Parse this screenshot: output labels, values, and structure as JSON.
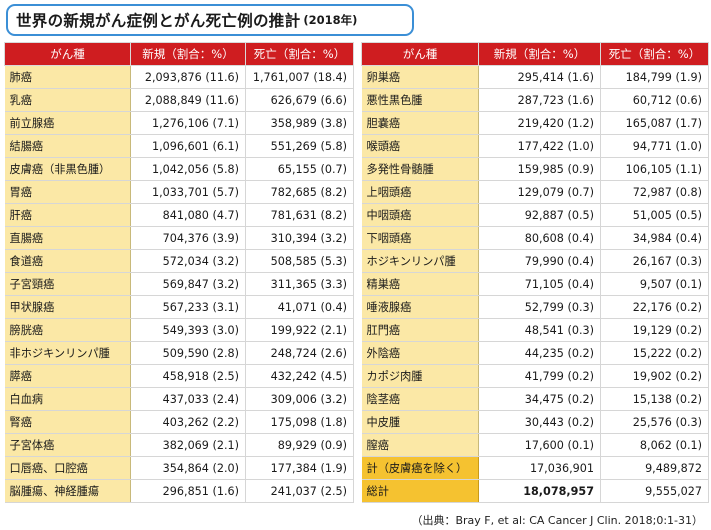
{
  "title": {
    "main": "世界の新規がん症例とがん死亡例の推計",
    "year": "(2018年)"
  },
  "headers": {
    "name": "がん種",
    "new": "新規（割合：%）",
    "death": "死亡（割合：%）"
  },
  "left_rows": [
    {
      "name": "肺癌",
      "new": "2,093,876 (11.6)",
      "death": "1,761,007 (18.4)"
    },
    {
      "name": "乳癌",
      "new": "2,088,849 (11.6)",
      "death": "626,679 (6.6)"
    },
    {
      "name": "前立腺癌",
      "new": "1,276,106 (7.1)",
      "death": "358,989 (3.8)"
    },
    {
      "name": "結腸癌",
      "new": "1,096,601 (6.1)",
      "death": "551,269 (5.8)"
    },
    {
      "name": "皮膚癌（非黒色腫）",
      "new": "1,042,056 (5.8)",
      "death": "65,155 (0.7)"
    },
    {
      "name": "胃癌",
      "new": "1,033,701 (5.7)",
      "death": "782,685 (8.2)"
    },
    {
      "name": "肝癌",
      "new": "841,080 (4.7)",
      "death": "781,631 (8.2)"
    },
    {
      "name": "直腸癌",
      "new": "704,376 (3.9)",
      "death": "310,394 (3.2)"
    },
    {
      "name": "食道癌",
      "new": "572,034 (3.2)",
      "death": "508,585 (5.3)"
    },
    {
      "name": "子宮頸癌",
      "new": "569,847 (3.2)",
      "death": "311,365 (3.3)"
    },
    {
      "name": "甲状腺癌",
      "new": "567,233 (3.1)",
      "death": "41,071 (0.4)"
    },
    {
      "name": "膀胱癌",
      "new": "549,393 (3.0)",
      "death": "199,922 (2.1)"
    },
    {
      "name": "非ホジキンリンパ腫",
      "new": "509,590 (2.8)",
      "death": "248,724 (2.6)"
    },
    {
      "name": "膵癌",
      "new": "458,918 (2.5)",
      "death": "432,242 (4.5)"
    },
    {
      "name": "白血病",
      "new": "437,033 (2.4)",
      "death": "309,006 (3.2)"
    },
    {
      "name": "腎癌",
      "new": "403,262 (2.2)",
      "death": "175,098 (1.8)"
    },
    {
      "name": "子宮体癌",
      "new": "382,069 (2.1)",
      "death": "89,929 (0.9)"
    },
    {
      "name": "口唇癌、口腔癌",
      "new": "354,864 (2.0)",
      "death": "177,384 (1.9)"
    },
    {
      "name": "脳腫瘍、神経腫瘍",
      "new": "296,851 (1.6)",
      "death": "241,037 (2.5)"
    }
  ],
  "right_rows": [
    {
      "name": "卵巣癌",
      "new": "295,414 (1.6)",
      "death": "184,799 (1.9)"
    },
    {
      "name": "悪性黒色腫",
      "new": "287,723 (1.6)",
      "death": "60,712 (0.6)"
    },
    {
      "name": "胆嚢癌",
      "new": "219,420 (1.2)",
      "death": "165,087 (1.7)"
    },
    {
      "name": "喉頭癌",
      "new": "177,422 (1.0)",
      "death": "94,771 (1.0)"
    },
    {
      "name": "多発性骨髄腫",
      "new": "159,985 (0.9)",
      "death": "106,105 (1.1)"
    },
    {
      "name": "上咽頭癌",
      "new": "129,079 (0.7)",
      "death": "72,987 (0.8)"
    },
    {
      "name": "中咽頭癌",
      "new": "92,887 (0.5)",
      "death": "51,005 (0.5)"
    },
    {
      "name": "下咽頭癌",
      "new": "80,608 (0.4)",
      "death": "34,984 (0.4)"
    },
    {
      "name": "ホジキンリンパ腫",
      "new": "79,990 (0.4)",
      "death": "26,167 (0.3)"
    },
    {
      "name": "精巣癌",
      "new": "71,105 (0.4)",
      "death": "9,507 (0.1)"
    },
    {
      "name": "唾液腺癌",
      "new": "52,799 (0.3)",
      "death": "22,176 (0.2)"
    },
    {
      "name": "肛門癌",
      "new": "48,541 (0.3)",
      "death": "19,129 (0.2)"
    },
    {
      "name": "外陰癌",
      "new": "44,235 (0.2)",
      "death": "15,222 (0.2)"
    },
    {
      "name": "カポジ肉腫",
      "new": "41,799 (0.2)",
      "death": "19,902 (0.2)"
    },
    {
      "name": "陰茎癌",
      "new": "34,475 (0.2)",
      "death": "15,138 (0.2)"
    },
    {
      "name": "中皮腫",
      "new": "30,443 (0.2)",
      "death": "25,576 (0.3)"
    },
    {
      "name": "膣癌",
      "new": "17,600 (0.1)",
      "death": "8,062 (0.1)"
    }
  ],
  "totals": [
    {
      "name": "計（皮膚癌を除く）",
      "new": "17,036,901",
      "death": "9,489,872",
      "bold": false
    },
    {
      "name": "総計",
      "new": "18,078,957",
      "death": "9,555,027",
      "bold": true
    }
  ],
  "source": "（出典：Bray F, et al: CA Cancer J Clin. 2018;0:1-31）",
  "colors": {
    "header_red": "#cf1d20",
    "name_cell": "#fbe8a6",
    "total_cell": "#f5c230",
    "title_border": "#3b8fd6"
  }
}
